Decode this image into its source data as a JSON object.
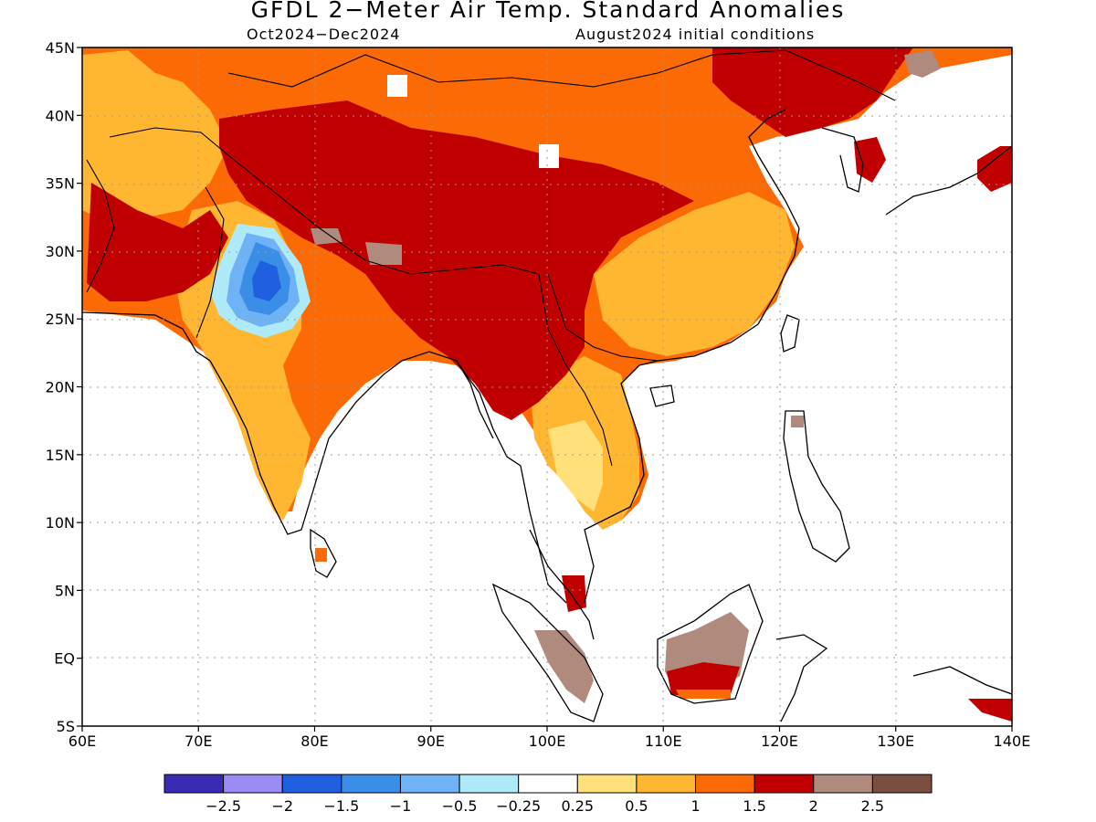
{
  "title": "GFDL 2−Meter Air Temp. Standard Anomalies",
  "subtitle_left": "Oct2024−Dec2024",
  "subtitle_right": "August2024 initial conditions",
  "map": {
    "lon_range": [
      60,
      140
    ],
    "lat_range": [
      -5,
      45
    ],
    "lat_labels": [
      "45N",
      "40N",
      "35N",
      "30N",
      "25N",
      "20N",
      "15N",
      "10N",
      "5N",
      "EQ",
      "5S"
    ],
    "lon_labels": [
      "60E",
      "70E",
      "80E",
      "90E",
      "100E",
      "110E",
      "120E",
      "130E",
      "140E"
    ],
    "gridlines": "dotted"
  },
  "colorbar": {
    "labels": [
      "−2.5",
      "−2",
      "−1.5",
      "−1",
      "−0.5",
      "−0.25",
      "0.25",
      "0.5",
      "1",
      "1.5",
      "2",
      "2.5"
    ],
    "colors": [
      "#3a2bb5",
      "#9b8cf5",
      "#1f5fe0",
      "#3a8ee8",
      "#6fb2f5",
      "#aeeaf8",
      "#ffffff",
      "#ffe07a",
      "#ffb732",
      "#fb6a04",
      "#c00000",
      "#b08a7c",
      "#7a4e40"
    ]
  },
  "colors": {
    "ocean": "#ffffff",
    "coast": "#000000"
  }
}
